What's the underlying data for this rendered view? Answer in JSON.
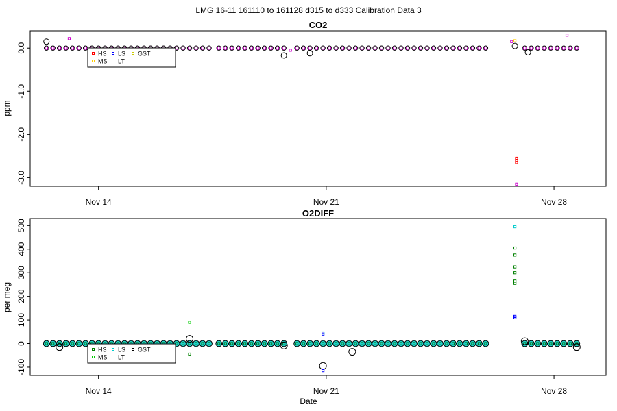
{
  "figure_title": "LMG   16-11    161110 to 161128    d315 to d333   Calibration Data 3",
  "x_axis": {
    "label": "Date",
    "ticks": [
      {
        "day": 14,
        "label": "Nov 14"
      },
      {
        "day": 21,
        "label": "Nov 21"
      },
      {
        "day": 28,
        "label": "Nov 28"
      }
    ]
  },
  "legend_series": [
    {
      "name": "HS",
      "color": "#ff0000"
    },
    {
      "name": "MS",
      "color": "#ffcc00"
    },
    {
      "name": "LS",
      "color": "#0000ff"
    },
    {
      "name": "LT",
      "color": "#cc00cc"
    },
    {
      "name": "GST",
      "color": "#cccc00"
    }
  ],
  "legend_series_o2": [
    {
      "name": "HS",
      "color": "#008000"
    },
    {
      "name": "MS",
      "color": "#00cc00"
    },
    {
      "name": "LS",
      "color": "#00cccc"
    },
    {
      "name": "LT",
      "color": "#0000ff"
    },
    {
      "name": "GST",
      "color": "#000000"
    }
  ],
  "chart_data": [
    {
      "type": "scatter",
      "title": "CO2",
      "ylabel": "ppm",
      "xlabel": "",
      "xlim_day": [
        11.9,
        29.6
      ],
      "ylim": [
        -3.2,
        0.4
      ],
      "yticks": [
        0.0,
        -1.0,
        -2.0,
        -3.0
      ],
      "ytick_labels": [
        "0.0",
        "-1.0",
        "-2.0",
        "-3.0"
      ],
      "grid": false,
      "legend_position": "top-left",
      "segments": [
        {
          "start_day": 12.4,
          "end_day": 17.5,
          "step": 0.2,
          "y": 0.0
        },
        {
          "start_day": 17.7,
          "end_day": 19.8,
          "step": 0.2,
          "y": 0.0
        },
        {
          "start_day": 20.1,
          "end_day": 25.9,
          "step": 0.2,
          "y": 0.0
        },
        {
          "start_day": 27.1,
          "end_day": 28.8,
          "step": 0.2,
          "y": 0.0
        }
      ],
      "outliers": [
        {
          "series": "GST",
          "day": 12.4,
          "y": 0.15
        },
        {
          "series": "LT",
          "day": 13.1,
          "y": 0.22
        },
        {
          "series": "GST",
          "day": 19.7,
          "y": -0.17
        },
        {
          "series": "LT",
          "day": 19.9,
          "y": -0.05
        },
        {
          "series": "GST",
          "day": 20.5,
          "y": -0.12
        },
        {
          "series": "LT",
          "day": 26.7,
          "y": 0.15
        },
        {
          "series": "MS",
          "day": 26.8,
          "y": 0.17
        },
        {
          "series": "GST",
          "day": 26.8,
          "y": 0.05
        },
        {
          "series": "HS",
          "day": 26.85,
          "y": -2.55
        },
        {
          "series": "HS",
          "day": 26.85,
          "y": -2.6
        },
        {
          "series": "HS",
          "day": 26.85,
          "y": -2.65
        },
        {
          "series": "LT",
          "day": 26.85,
          "y": -3.15
        },
        {
          "series": "GST",
          "day": 27.2,
          "y": -0.1
        },
        {
          "series": "LT",
          "day": 28.4,
          "y": 0.3
        }
      ]
    },
    {
      "type": "scatter",
      "title": "O2DIFF",
      "ylabel": "per meg",
      "xlabel": "Date",
      "xlim_day": [
        11.9,
        29.6
      ],
      "ylim": [
        -135,
        530
      ],
      "yticks": [
        500,
        400,
        300,
        200,
        100,
        0,
        -100
      ],
      "ytick_labels": [
        "500",
        "400",
        "300",
        "200",
        "100",
        "0",
        "-100"
      ],
      "grid": false,
      "legend_position": "bottom-left",
      "segments": [
        {
          "start_day": 12.4,
          "end_day": 17.5,
          "step": 0.2,
          "y": 0
        },
        {
          "start_day": 17.7,
          "end_day": 19.8,
          "step": 0.2,
          "y": 0
        },
        {
          "start_day": 20.1,
          "end_day": 25.9,
          "step": 0.2,
          "y": 0
        },
        {
          "start_day": 27.1,
          "end_day": 28.8,
          "step": 0.2,
          "y": 0
        }
      ],
      "outliers": [
        {
          "series": "GST",
          "day": 12.8,
          "y": -15
        },
        {
          "series": "GST",
          "day": 16.8,
          "y": 20
        },
        {
          "series": "MS",
          "day": 16.8,
          "y": 90
        },
        {
          "series": "HS",
          "day": 16.8,
          "y": -45
        },
        {
          "series": "GST",
          "day": 19.7,
          "y": -8
        },
        {
          "series": "LT",
          "day": 20.9,
          "y": 40
        },
        {
          "series": "LS",
          "day": 20.9,
          "y": 45
        },
        {
          "series": "GST",
          "day": 20.9,
          "y": -95
        },
        {
          "series": "LT",
          "day": 20.9,
          "y": -115
        },
        {
          "series": "GST",
          "day": 21.8,
          "y": -35
        },
        {
          "series": "LS",
          "day": 26.8,
          "y": 495
        },
        {
          "series": "HS",
          "day": 26.8,
          "y": 405
        },
        {
          "series": "HS",
          "day": 26.8,
          "y": 375
        },
        {
          "series": "HS",
          "day": 26.8,
          "y": 325
        },
        {
          "series": "HS",
          "day": 26.8,
          "y": 300
        },
        {
          "series": "HS",
          "day": 26.8,
          "y": 265
        },
        {
          "series": "HS",
          "day": 26.8,
          "y": 255
        },
        {
          "series": "LT",
          "day": 26.8,
          "y": 115
        },
        {
          "series": "LT",
          "day": 26.8,
          "y": 110
        },
        {
          "series": "GST",
          "day": 27.1,
          "y": 10
        },
        {
          "series": "GST",
          "day": 28.7,
          "y": -15
        }
      ]
    }
  ]
}
